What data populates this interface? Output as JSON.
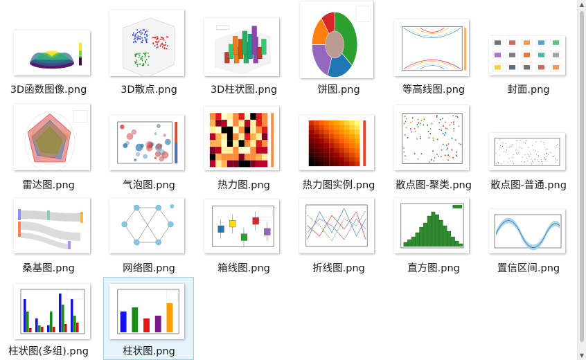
{
  "files": [
    {
      "name": "3D函数图像.png",
      "thumb": "surface3d"
    },
    {
      "name": "3D散点.png",
      "thumb": "scatter3d"
    },
    {
      "name": "3D柱状图.png",
      "thumb": "bar3d"
    },
    {
      "name": "饼图.png",
      "thumb": "pie"
    },
    {
      "name": "等高线图.png",
      "thumb": "contour"
    },
    {
      "name": "封面.png",
      "thumb": "cover"
    },
    {
      "name": "雷达图.png",
      "thumb": "radar"
    },
    {
      "name": "气泡图.png",
      "thumb": "bubble"
    },
    {
      "name": "热力图.png",
      "thumb": "heatmap"
    },
    {
      "name": "热力图实例.png",
      "thumb": "heatmap2"
    },
    {
      "name": "散点图-聚类.png",
      "thumb": "scatter_cluster"
    },
    {
      "name": "散点图-普通.png",
      "thumb": "scatter_plain"
    },
    {
      "name": "桑基图.png",
      "thumb": "sankey"
    },
    {
      "name": "网络图.png",
      "thumb": "network"
    },
    {
      "name": "箱线图.png",
      "thumb": "boxplot"
    },
    {
      "name": "折线图.png",
      "thumb": "line"
    },
    {
      "name": "直方图.png",
      "thumb": "histogram"
    },
    {
      "name": "置信区间.png",
      "thumb": "confidence"
    },
    {
      "name": "柱状图(多组).png",
      "thumb": "multibar"
    },
    {
      "name": "柱状图.png",
      "thumb": "bar"
    }
  ],
  "selected_file": "柱状图.png",
  "scrollbar": {
    "up_glyph": "▲",
    "down_glyph": "▼"
  }
}
